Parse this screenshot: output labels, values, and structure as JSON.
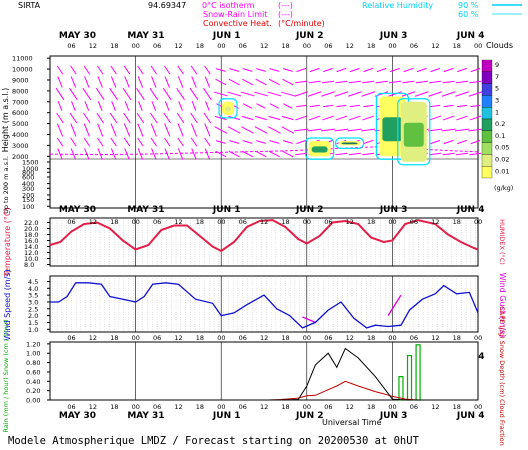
{
  "header": {
    "site": "SIRTA",
    "coord": "94.69347",
    "isotherm_label": "0°C isotherm",
    "isotherm_sym": "(---)",
    "snowrain_label": "Snow-Rain Limit",
    "snowrain_sym": "(---)",
    "convective_label": "Convective Heat.",
    "convective_sym": "(°C/minute)",
    "rh_label": "Relative Humidity",
    "rh_90": "90 %",
    "rh_60": "60 %"
  },
  "footer": {
    "universal_time": "Universal Time",
    "caption": "Modele Atmospherique LMDZ / Forecast starting on 20200530 at 0hUT"
  },
  "colors": {
    "wind_arrow": "#ff00ff",
    "temperature": "#e0204a",
    "wind_speed": "#1010d0",
    "wind_gust": "#e000e0",
    "rh": "#00e0ff",
    "cape": "#c00000",
    "rain": "#00b000",
    "snow_depth": "#0000c0"
  },
  "chart_data": [
    {
      "type": "heatmap",
      "panel": "clouds_wind",
      "dates": [
        "MAY 30",
        "MAY 31",
        "JUN 1",
        "JUN 2",
        "JUN 3",
        "JUN 4"
      ],
      "hour_ticks": [
        "06",
        "12",
        "18",
        "00"
      ],
      "ylabel": "Height (m a.s.l.)",
      "ylabel_low": "Up to 200 m a.s.l.",
      "yticks_upper": [
        11000,
        10000,
        9000,
        8000,
        7000,
        6000,
        5000,
        4000,
        3000,
        2000
      ],
      "yticks_lower": [
        1500,
        1000,
        800,
        600,
        400,
        300,
        200,
        150,
        100
      ],
      "colorbar_title": "Clouds",
      "colorbar_unit": "(g/kg)",
      "colorbar_ticks": [
        "9",
        "7",
        "5",
        "3",
        "1",
        "0.2",
        "0.1",
        "0.05",
        "0.02",
        "0.01"
      ],
      "colorbar_colors": [
        "#c000c0",
        "#8000c0",
        "#4040e0",
        "#2080ff",
        "#20c0e0",
        "#20a060",
        "#60c040",
        "#a0e060",
        "#e0f080",
        "#ffff60"
      ],
      "isotherm_level_m": [
        2200,
        2150,
        2200,
        2300,
        2400,
        2500,
        2700,
        2900,
        2600,
        2400
      ],
      "clouds": [
        {
          "day": 2.08,
          "h_from": 5800,
          "h_to": 7000,
          "amount": "0.01-0.05"
        },
        {
          "day": 3.15,
          "h_from": 2000,
          "h_to": 3400,
          "amount": "0.05-0.2"
        },
        {
          "day": 3.5,
          "h_from": 3000,
          "h_to": 3400,
          "amount": "0.1-0.2"
        },
        {
          "day": 4.0,
          "h_from": 2000,
          "h_to": 7500,
          "amount": "0.01-0.2"
        },
        {
          "day": 4.25,
          "h_from": 1500,
          "h_to": 7000,
          "amount": "0.02-0.1"
        }
      ]
    },
    {
      "type": "line",
      "panel": "temperature",
      "ylabel": "Temperature (°C)",
      "ylabel_right": "HUMIDEX (°C)",
      "yticks": [
        8.0,
        10.0,
        12.0,
        14.0,
        16.0,
        18.0,
        20.0,
        22.0
      ],
      "ylim": [
        7.5,
        23.5
      ],
      "x_days": [
        0.0,
        0.12,
        0.25,
        0.4,
        0.55,
        0.7,
        0.85,
        1.0,
        1.15,
        1.3,
        1.45,
        1.6,
        1.75,
        1.9,
        2.0,
        2.15,
        2.3,
        2.45,
        2.6,
        2.75,
        2.9,
        3.0,
        3.15,
        3.3,
        3.45,
        3.6,
        3.75,
        3.9,
        4.0,
        4.15,
        4.3,
        4.5,
        4.65,
        4.8,
        4.95,
        5.0
      ],
      "series": [
        {
          "name": "Temperature",
          "values": [
            14.5,
            15.5,
            19.0,
            21.5,
            22.0,
            20.0,
            16.0,
            13.0,
            14.5,
            19.5,
            21.0,
            21.0,
            17.5,
            14.0,
            12.5,
            15.5,
            20.5,
            22.5,
            22.8,
            20.5,
            16.5,
            15.0,
            17.5,
            22.0,
            22.5,
            21.5,
            17.0,
            15.5,
            16.0,
            21.5,
            22.8,
            21.5,
            18.0,
            15.5,
            13.5,
            13.0
          ]
        }
      ]
    },
    {
      "type": "line",
      "panel": "wind",
      "ylabel": "Wind Speed (m/s)",
      "ylabel_right": "Wind Gust (m/s)",
      "yticks": [
        1.0,
        1.5,
        2.0,
        2.5,
        3.0,
        3.5,
        4.0,
        4.5
      ],
      "ylim": [
        0.8,
        4.9
      ],
      "x_days": [
        0.0,
        0.1,
        0.2,
        0.3,
        0.45,
        0.6,
        0.7,
        0.85,
        1.0,
        1.1,
        1.2,
        1.35,
        1.5,
        1.7,
        1.9,
        2.0,
        2.15,
        2.3,
        2.5,
        2.65,
        2.8,
        2.95,
        3.1,
        3.25,
        3.4,
        3.55,
        3.7,
        3.8,
        3.95,
        4.1,
        4.2,
        4.35,
        4.5,
        4.6,
        4.75,
        4.9,
        5.0
      ],
      "series": [
        {
          "name": "Wind Speed",
          "values": [
            3.0,
            3.0,
            3.4,
            4.4,
            4.4,
            4.3,
            3.4,
            3.2,
            3.0,
            3.4,
            4.3,
            4.4,
            4.3,
            3.2,
            2.9,
            2.0,
            2.2,
            2.8,
            3.5,
            2.5,
            2.0,
            1.1,
            1.5,
            2.4,
            3.0,
            1.8,
            1.1,
            1.3,
            1.2,
            1.3,
            2.4,
            3.2,
            3.6,
            4.2,
            3.6,
            3.7,
            2.2
          ]
        },
        {
          "name": "Wind Gust",
          "values": [
            null,
            null,
            null,
            null,
            null,
            null,
            null,
            null,
            null,
            null,
            null,
            null,
            null,
            null,
            null,
            null,
            null,
            null,
            null,
            null,
            null,
            1.9,
            1.5,
            null,
            null,
            null,
            null,
            null,
            2.0,
            3.5,
            null,
            null,
            null,
            null,
            null,
            null,
            null
          ]
        }
      ]
    },
    {
      "type": "line",
      "panel": "precip",
      "ylabel": "Rain (mm / hour) Snow (cm / hour)",
      "ylabel_right": "CAPE (J/g) Snow Depth (cm) Cloud Fraction",
      "yticks": [
        0.0,
        0.2,
        0.4,
        0.6,
        0.8,
        1.0,
        1.2
      ],
      "ylim": [
        0,
        1.24
      ],
      "universal_time_label": "Universal Time",
      "x_days": [
        0.0,
        1.0,
        2.0,
        2.55,
        2.7,
        2.9,
        3.0,
        3.1,
        3.25,
        3.35,
        3.45,
        3.6,
        3.8,
        4.0,
        4.15,
        4.3,
        4.5,
        5.0
      ],
      "series": [
        {
          "name": "CAPE",
          "values": [
            0,
            0,
            0,
            0,
            0.01,
            0.04,
            0.09,
            0.1,
            0.22,
            0.3,
            0.4,
            0.3,
            0.18,
            0.08,
            0.02,
            0,
            0,
            0
          ]
        },
        {
          "name": "Cloud Fraction",
          "values": [
            0,
            0,
            0,
            0,
            0,
            0.01,
            0.3,
            0.75,
            1.0,
            0.7,
            1.1,
            0.9,
            0.5,
            0.02,
            0,
            0,
            0,
            0
          ]
        }
      ],
      "rain_bars": [
        {
          "day": 4.1,
          "value": 0.5
        },
        {
          "day": 4.2,
          "value": 0.95
        },
        {
          "day": 4.3,
          "value": 1.18
        }
      ]
    }
  ]
}
